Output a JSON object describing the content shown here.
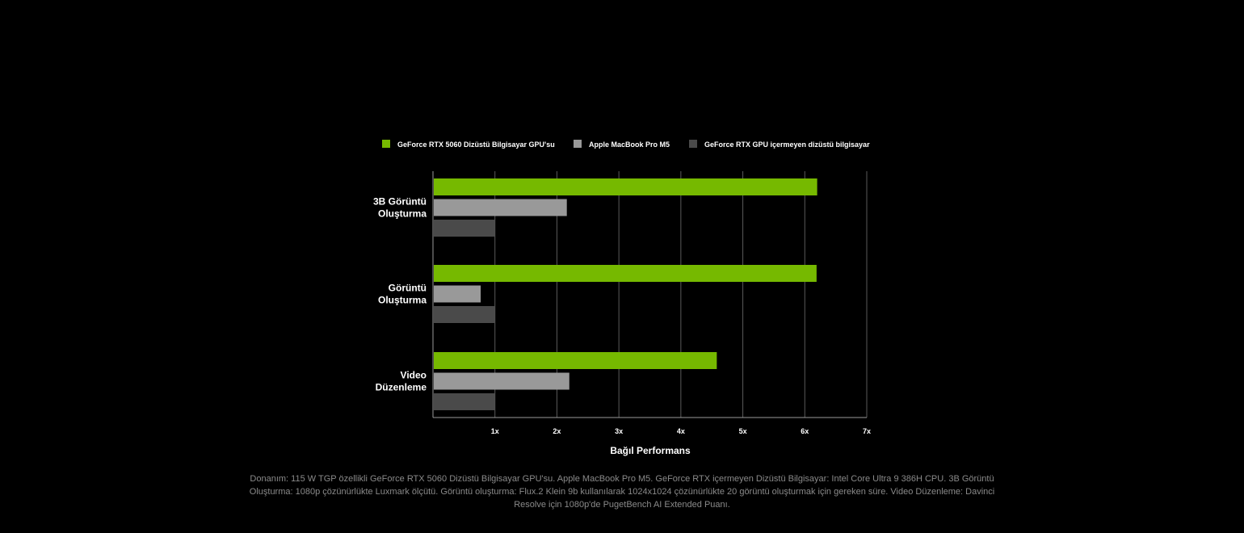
{
  "chart_data": {
    "type": "bar",
    "orientation": "horizontal",
    "categories": [
      [
        "3B Görüntü",
        "Oluşturma"
      ],
      [
        "Görüntü",
        "Oluşturma"
      ],
      [
        "Video",
        "Düzenleme"
      ]
    ],
    "series": [
      {
        "name": "GeForce RTX 5060 Dizüstü Bilgisayar GPU'su",
        "color": "#76b900",
        "values": [
          6.2,
          6.19,
          4.58
        ]
      },
      {
        "name": "Apple MacBook Pro M5",
        "color": "#999999",
        "values": [
          2.16,
          0.77,
          2.2
        ]
      },
      {
        "name": "GeForce RTX GPU içermeyen dizüstü bilgisayar",
        "color": "#4a4a4a",
        "values": [
          1.0,
          1.0,
          1.0
        ]
      }
    ],
    "xticks": [
      "1x",
      "2x",
      "3x",
      "4x",
      "5x",
      "6x",
      "7x"
    ],
    "xtick_values": [
      1,
      2,
      3,
      4,
      5,
      6,
      7
    ],
    "xlim": [
      0,
      7
    ],
    "xlabel": "Bağıl Performans",
    "legend_position": "top",
    "grid": true
  },
  "footnote": "Donanım: 115 W TGP özellikli GeForce RTX 5060 Dizüstü Bilgisayar GPU'su. Apple MacBook Pro M5. GeForce RTX içermeyen Dizüstü Bilgisayar: Intel Core Ultra 9 386H CPU. 3B Görüntü Oluşturma: 1080p çözünürlükte Luxmark ölçütü. Görüntü oluşturma: Flux.2 Klein 9b kullanılarak 1024x1024 çözünürlükte 20 görüntü oluşturmak için gereken süre. Video Düzenleme: Davinci Resolve için 1080p'de PugetBench AI Extended Puanı."
}
